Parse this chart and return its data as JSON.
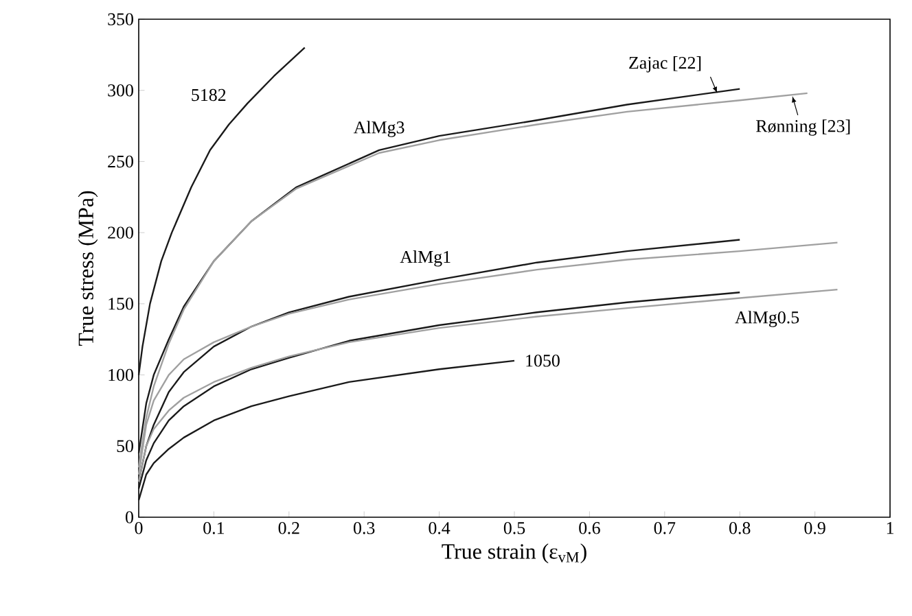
{
  "chart_data": {
    "type": "line",
    "xlabel": "True strain (ε$_{vM}$)",
    "ylabel": "True stress (MPa)",
    "xlim": [
      0,
      1
    ],
    "ylim": [
      0,
      350
    ],
    "xticks": [
      0,
      0.1,
      0.2,
      0.3,
      0.4,
      0.5,
      0.6,
      0.7,
      0.8,
      0.9,
      1
    ],
    "yticks": [
      0,
      50,
      100,
      150,
      200,
      250,
      300,
      350
    ],
    "grid": false,
    "marker": "none",
    "line_style": "solid",
    "series": [
      {
        "name": "5182",
        "color": "#1a1a1a",
        "x": [
          0,
          0.005,
          0.015,
          0.03,
          0.044,
          0.07,
          0.095,
          0.12,
          0.145,
          0.18,
          0.221
        ],
        "values": [
          100,
          120,
          150,
          180,
          200,
          232,
          258,
          276,
          291,
          310,
          330
        ]
      },
      {
        "name": "AlMg3",
        "color": "#1a1a1a",
        "x": [
          0,
          0.01,
          0.02,
          0.04,
          0.06,
          0.1,
          0.15,
          0.21,
          0.32,
          0.4,
          0.53,
          0.65,
          0.8
        ],
        "values": [
          45,
          80,
          100,
          125,
          148,
          180,
          208,
          232,
          258,
          268,
          279,
          290,
          301
        ]
      },
      {
        "color": "#a0a0a0",
        "x": [
          0,
          0.01,
          0.02,
          0.04,
          0.06,
          0.1,
          0.15,
          0.21,
          0.32,
          0.4,
          0.53,
          0.65,
          0.8,
          0.89
        ],
        "values": [
          35,
          70,
          92,
          122,
          146,
          180,
          208,
          231,
          256,
          265,
          276,
          285,
          293,
          298
        ]
      },
      {
        "name": "AlMg1",
        "color": "#1a1a1a",
        "x": [
          0,
          0.01,
          0.02,
          0.04,
          0.06,
          0.1,
          0.15,
          0.2,
          0.28,
          0.4,
          0.53,
          0.65,
          0.8
        ],
        "values": [
          25,
          50,
          65,
          88,
          102,
          120,
          134,
          144,
          155,
          167,
          179,
          187,
          195
        ]
      },
      {
        "color": "#a0a0a0",
        "x": [
          0,
          0.01,
          0.02,
          0.04,
          0.06,
          0.1,
          0.15,
          0.2,
          0.28,
          0.4,
          0.53,
          0.65,
          0.8,
          0.93
        ],
        "values": [
          30,
          65,
          82,
          100,
          111,
          123,
          134,
          143,
          153,
          164,
          174,
          181,
          187,
          193
        ]
      },
      {
        "name": "AlMg0.5",
        "color": "#1a1a1a",
        "x": [
          0,
          0.01,
          0.02,
          0.04,
          0.06,
          0.1,
          0.15,
          0.2,
          0.28,
          0.4,
          0.53,
          0.65,
          0.8
        ],
        "values": [
          20,
          40,
          52,
          68,
          78,
          92,
          104,
          112,
          124,
          135,
          144,
          151,
          158
        ]
      },
      {
        "color": "#a0a0a0",
        "x": [
          0,
          0.01,
          0.02,
          0.04,
          0.06,
          0.1,
          0.15,
          0.2,
          0.28,
          0.4,
          0.53,
          0.65,
          0.8,
          0.93
        ],
        "values": [
          25,
          50,
          62,
          75,
          84,
          95,
          105,
          113,
          123,
          133,
          141,
          147,
          154,
          160
        ]
      },
      {
        "name": "1050",
        "color": "#1a1a1a",
        "x": [
          0,
          0.01,
          0.02,
          0.04,
          0.06,
          0.1,
          0.15,
          0.2,
          0.28,
          0.4,
          0.5
        ],
        "values": [
          12,
          30,
          38,
          48,
          56,
          68,
          78,
          85,
          95,
          104,
          110
        ]
      }
    ],
    "annotations": [
      {
        "text": "Zajac [22]",
        "x": 0.77,
        "y": 298
      },
      {
        "text": "Rønning [23]",
        "x": 0.87,
        "y": 296
      }
    ]
  }
}
